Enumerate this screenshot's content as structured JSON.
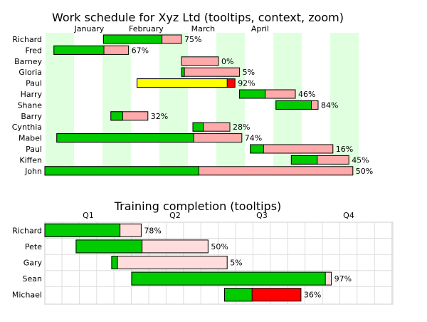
{
  "chart_data": [
    {
      "type": "gantt",
      "title": "Work schedule for Xyz Ltd (tooltips, context, zoom)",
      "x_axis": {
        "unit": "month",
        "ticks": [
          "January",
          "February",
          "March",
          "April"
        ],
        "range_months": [
          0,
          4.1
        ]
      },
      "alternating_column_color": "#dfffdf",
      "tasks": [
        {
          "name": "Richard",
          "start": 1.03,
          "end": 2.4,
          "complete_pct": 75
        },
        {
          "name": "Fred",
          "start": 0.16,
          "end": 1.47,
          "complete_pct": 67
        },
        {
          "name": "Barney",
          "start": 2.4,
          "end": 3.05,
          "complete_pct": 0
        },
        {
          "name": "Gloria",
          "start": 2.4,
          "end": 3.42,
          "complete_pct": 5
        },
        {
          "name": "Paul",
          "start": 1.62,
          "end": 3.34,
          "complete_pct": 92,
          "done_color": "#ffff00",
          "remaining_color": "#ff0000"
        },
        {
          "name": "Harry",
          "start": 3.42,
          "end": 4.4,
          "complete_pct": 46
        },
        {
          "name": "Shane",
          "start": 4.06,
          "end": 4.8,
          "complete_pct": 84
        },
        {
          "name": "Barry",
          "start": 1.16,
          "end": 1.81,
          "complete_pct": 32
        },
        {
          "name": "Cynthia",
          "start": 2.6,
          "end": 3.25,
          "complete_pct": 28
        },
        {
          "name": "Mabel",
          "start": 0.21,
          "end": 3.46,
          "complete_pct": 74
        },
        {
          "name": "Paul",
          "start": 3.61,
          "end": 5.06,
          "complete_pct": 16
        },
        {
          "name": "Kiffen",
          "start": 4.33,
          "end": 5.34,
          "complete_pct": 45
        },
        {
          "name": "John",
          "start": 0.0,
          "end": 5.41,
          "complete_pct": 50
        }
      ],
      "done_color": "#00cc00",
      "remaining_color": "#ffaaaa"
    },
    {
      "type": "gantt",
      "title": "Training completion (tooltips)",
      "x_axis": {
        "unit": "quarter",
        "ticks": [
          "Q1",
          "Q2",
          "Q3",
          "Q4"
        ]
      },
      "grid": true,
      "tasks": [
        {
          "name": "Richard",
          "start": 0.0,
          "end": 1.11,
          "complete_pct": 78
        },
        {
          "name": "Pete",
          "start": 0.36,
          "end": 1.88,
          "complete_pct": 50
        },
        {
          "name": "Gary",
          "start": 0.77,
          "end": 2.1,
          "complete_pct": 5
        },
        {
          "name": "Sean",
          "start": 1.0,
          "end": 3.3,
          "complete_pct": 97
        },
        {
          "name": "Michael",
          "start": 2.07,
          "end": 2.95,
          "complete_pct": 36,
          "remaining_color": "#ff0000"
        }
      ],
      "done_color": "#00cc00",
      "remaining_color": "#ffdddd"
    }
  ]
}
